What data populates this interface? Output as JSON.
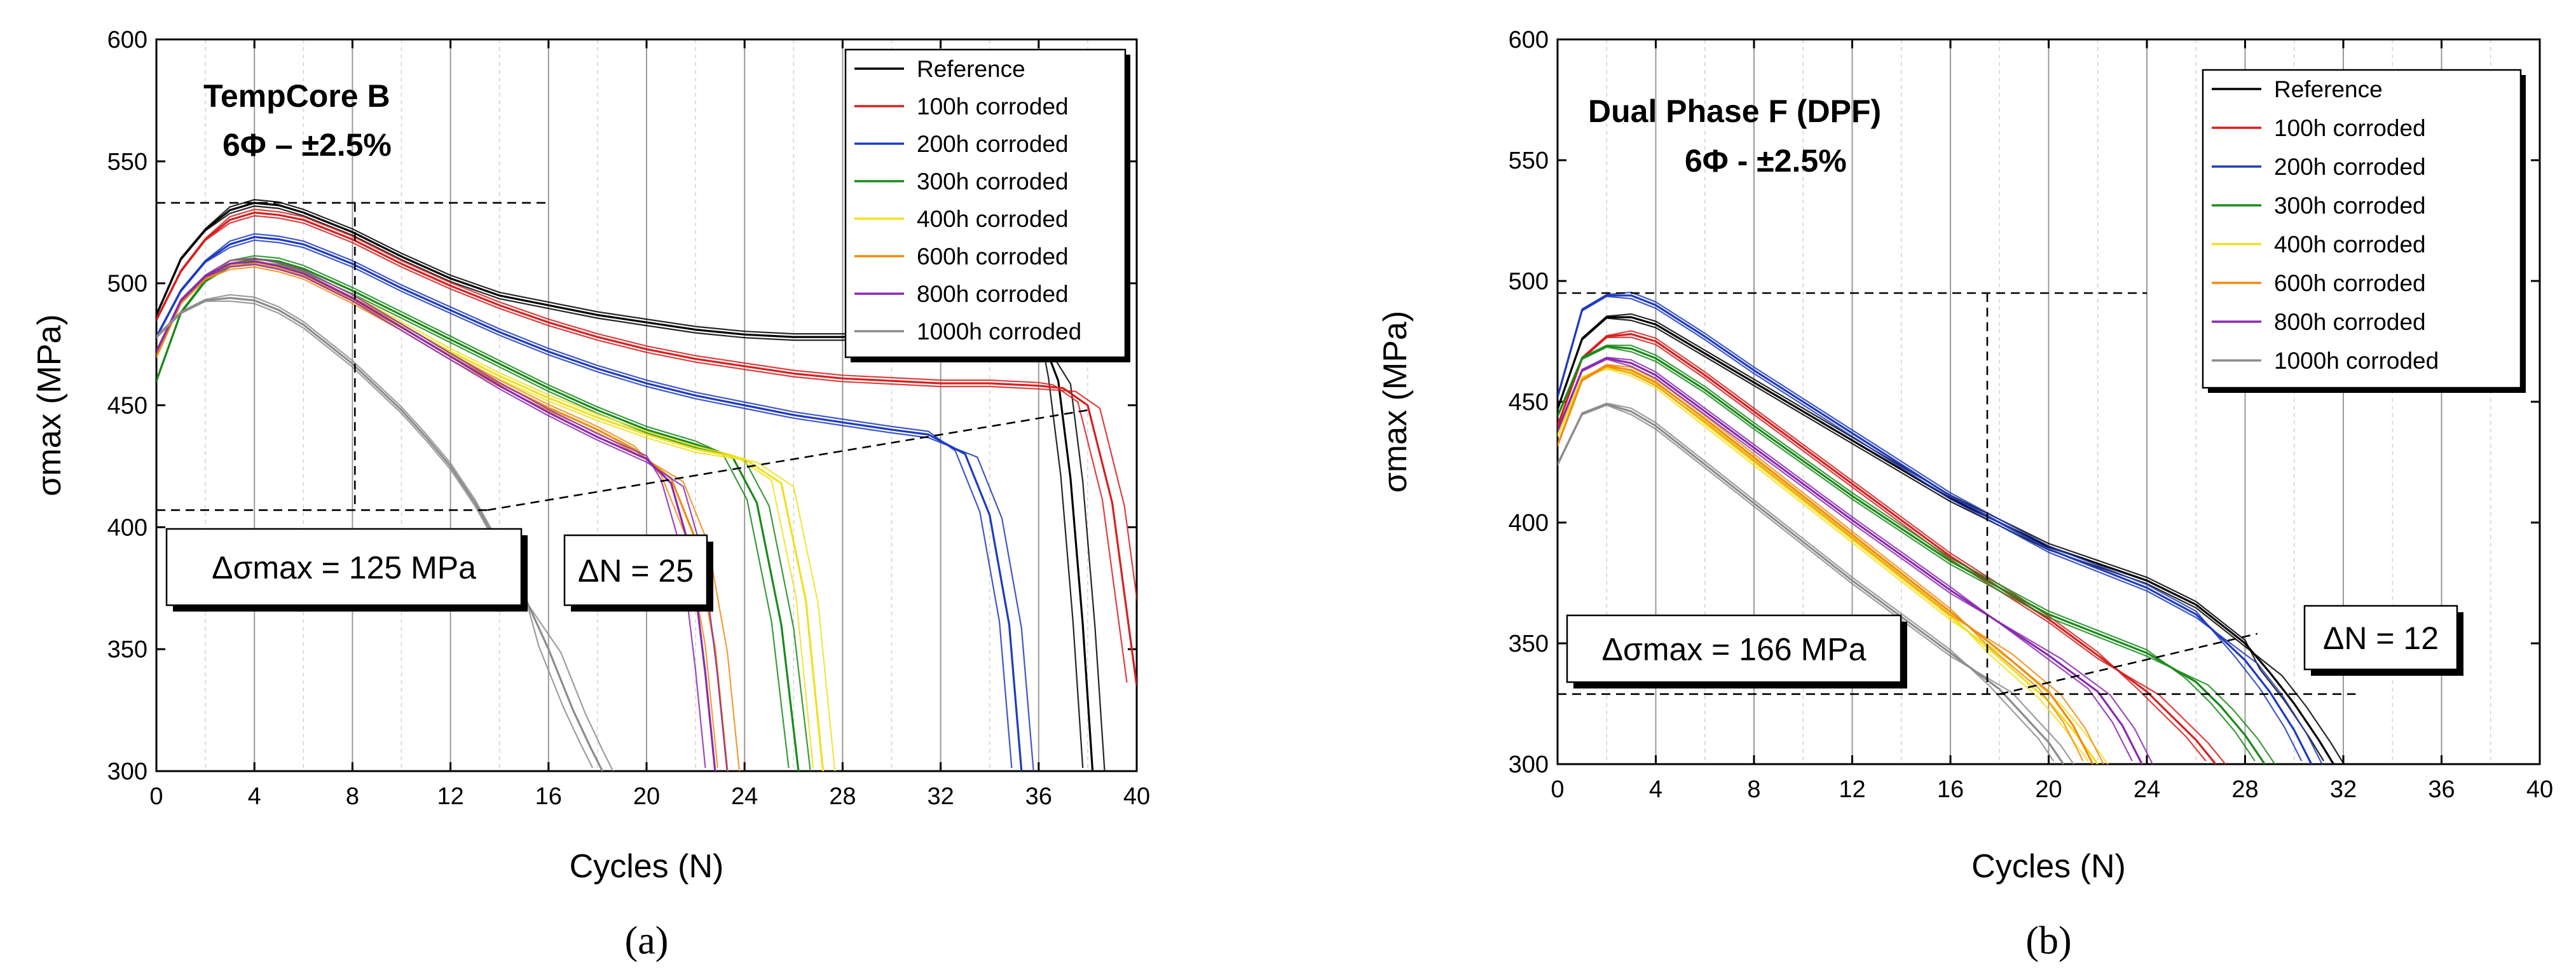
{
  "chart_data": [
    {
      "type": "line",
      "panel_label": "(a)",
      "title": "TempCore B",
      "subtitle": "6Φ – ±2.5%",
      "xlabel": "Cycles (N)",
      "ylabel": "σmax (MPa)",
      "xlim": [
        0,
        40
      ],
      "ylim": [
        300,
        600
      ],
      "xticks": [
        0,
        4,
        8,
        12,
        16,
        20,
        24,
        28,
        32,
        36,
        40
      ],
      "yticks": [
        300,
        350,
        400,
        450,
        500,
        550,
        600
      ],
      "legend_position": "top-right",
      "annotations": {
        "delta_sigma": "Δσmax = 125 MPa",
        "delta_n": "ΔN = 25",
        "ref_peak_level": 533,
        "ref_low_level": 407
      },
      "series": [
        {
          "name": "Reference",
          "color": "#000000",
          "x": [
            0,
            1,
            2,
            3,
            4,
            5,
            6,
            8,
            10,
            12,
            14,
            16,
            18,
            20,
            22,
            24,
            26,
            28,
            30,
            32,
            34,
            35,
            36,
            36.8,
            37.3,
            37.8,
            38.2
          ],
          "y": [
            487,
            510,
            522,
            530,
            533,
            532,
            529,
            521,
            511,
            502,
            495,
            491,
            487,
            484,
            481,
            479,
            478,
            478,
            479,
            480,
            481,
            481,
            481,
            460,
            420,
            360,
            300
          ]
        },
        {
          "name": "100h corroded",
          "color": "#d62020",
          "x": [
            0,
            1,
            2,
            3,
            4,
            5,
            6,
            8,
            10,
            12,
            14,
            16,
            18,
            20,
            22,
            24,
            26,
            28,
            30,
            32,
            34,
            36,
            37,
            38,
            39,
            40
          ],
          "y": [
            485,
            505,
            518,
            526,
            529,
            528,
            526,
            518,
            508,
            499,
            491,
            484,
            478,
            473,
            469,
            466,
            463,
            461,
            460,
            459,
            459,
            458,
            457,
            450,
            410,
            335
          ]
        },
        {
          "name": "200h corroded",
          "color": "#1f3bbf",
          "x": [
            0,
            1,
            2,
            3,
            4,
            5,
            6,
            8,
            10,
            12,
            14,
            16,
            18,
            20,
            22,
            24,
            26,
            28,
            30,
            31.5,
            33,
            34,
            34.8,
            35.3
          ],
          "y": [
            478,
            497,
            509,
            516,
            519,
            518,
            516,
            508,
            498,
            489,
            480,
            472,
            465,
            459,
            454,
            450,
            446,
            443,
            440,
            438,
            430,
            405,
            360,
            300
          ]
        },
        {
          "name": "300h corroded",
          "color": "#1a8a1a",
          "x": [
            0,
            1,
            2,
            3,
            4,
            5,
            6,
            8,
            10,
            12,
            14,
            16,
            18,
            20,
            22,
            23.5,
            24.5,
            25.5,
            26.2
          ],
          "y": [
            460,
            488,
            501,
            508,
            510,
            509,
            506,
            497,
            487,
            477,
            467,
            457,
            448,
            440,
            434,
            429,
            410,
            360,
            300
          ]
        },
        {
          "name": "400h corroded",
          "color": "#f0e020",
          "x": [
            0,
            1,
            2,
            3,
            4,
            5,
            6,
            8,
            10,
            12,
            14,
            16,
            18,
            20,
            22,
            24,
            25.5,
            26.5,
            27.2
          ],
          "y": [
            470,
            493,
            503,
            508,
            509,
            507,
            504,
            494,
            483,
            472,
            462,
            453,
            445,
            438,
            432,
            428,
            418,
            370,
            300
          ]
        },
        {
          "name": "600h corroded",
          "color": "#f08c10",
          "x": [
            0,
            1,
            2,
            3,
            4,
            5,
            6,
            8,
            10,
            12,
            14,
            16,
            18,
            19.5,
            21,
            22,
            22.8,
            23.3
          ],
          "y": [
            470,
            492,
            502,
            507,
            508,
            506,
            503,
            493,
            482,
            470,
            459,
            449,
            440,
            432,
            420,
            395,
            350,
            300
          ]
        },
        {
          "name": "800h corroded",
          "color": "#8a2ab0",
          "x": [
            0,
            1,
            2,
            3,
            4,
            5,
            6,
            8,
            10,
            12,
            14,
            16,
            18,
            20,
            21,
            21.8,
            22.4,
            22.8
          ],
          "y": [
            472,
            493,
            503,
            508,
            509,
            507,
            504,
            494,
            482,
            470,
            458,
            447,
            437,
            428,
            418,
            390,
            340,
            300
          ]
        },
        {
          "name": "1000h corroded",
          "color": "#8c8c8c",
          "x": [
            0,
            1,
            2,
            3,
            4,
            5,
            6,
            8,
            10,
            11,
            12,
            13,
            14,
            15,
            16,
            17,
            17.7,
            18.2
          ],
          "y": [
            478,
            488,
            493,
            494,
            493,
            489,
            483,
            467,
            448,
            437,
            425,
            410,
            392,
            372,
            350,
            325,
            310,
            300
          ]
        }
      ]
    },
    {
      "type": "line",
      "panel_label": "(b)",
      "title": "Dual Phase F (DPF)",
      "subtitle": "6Φ - ±2.5%",
      "xlabel": "Cycles (N)",
      "ylabel": "σmax (MPa)",
      "xlim": [
        0,
        40
      ],
      "ylim": [
        300,
        600
      ],
      "xticks": [
        0,
        4,
        8,
        12,
        16,
        20,
        24,
        28,
        32,
        36,
        40
      ],
      "yticks": [
        300,
        350,
        400,
        450,
        500,
        550,
        600
      ],
      "legend_position": "top-right",
      "annotations": {
        "delta_sigma": "Δσmax = 166 MPa",
        "delta_n": "ΔN = 12",
        "ref_peak_level": 495,
        "ref_low_level": 329
      },
      "series": [
        {
          "name": "Reference",
          "color": "#000000",
          "x": [
            0,
            1,
            2,
            3,
            4,
            6,
            8,
            12,
            16,
            20,
            24,
            26,
            28,
            29,
            30,
            31,
            31.6
          ],
          "y": [
            447,
            476,
            485,
            485,
            482,
            470,
            458,
            434,
            410,
            390,
            376,
            366,
            350,
            338,
            325,
            310,
            300
          ]
        },
        {
          "name": "100h corroded",
          "color": "#d62020",
          "x": [
            0,
            1,
            2,
            3,
            4,
            6,
            8,
            12,
            16,
            20,
            22,
            24,
            25,
            26,
            26.8
          ],
          "y": [
            440,
            468,
            477,
            478,
            475,
            461,
            446,
            416,
            386,
            360,
            345,
            330,
            320,
            310,
            300
          ]
        },
        {
          "name": "200h corroded",
          "color": "#1f3bbf",
          "x": [
            0,
            1,
            2,
            3,
            4,
            6,
            8,
            12,
            16,
            20,
            24,
            26,
            28,
            29,
            30,
            30.7
          ],
          "y": [
            452,
            488,
            494,
            494,
            490,
            477,
            463,
            437,
            411,
            389,
            373,
            362,
            343,
            330,
            314,
            300
          ]
        },
        {
          "name": "300h corroded",
          "color": "#1a8a1a",
          "x": [
            0,
            1,
            2,
            3,
            4,
            6,
            8,
            12,
            16,
            20,
            24,
            26,
            27,
            28,
            28.8
          ],
          "y": [
            444,
            468,
            473,
            472,
            468,
            455,
            440,
            411,
            384,
            362,
            346,
            334,
            324,
            312,
            300
          ]
        },
        {
          "name": "400h corroded",
          "color": "#f0e020",
          "x": [
            0,
            1,
            2,
            3,
            4,
            6,
            8,
            12,
            16,
            18,
            20,
            21,
            22
          ],
          "y": [
            436,
            460,
            464,
            462,
            457,
            441,
            425,
            393,
            361,
            344,
            326,
            314,
            300
          ]
        },
        {
          "name": "600h corroded",
          "color": "#f08c10",
          "x": [
            0,
            1,
            2,
            3,
            4,
            6,
            8,
            12,
            16,
            18,
            20,
            21,
            21.8
          ],
          "y": [
            432,
            459,
            465,
            463,
            458,
            443,
            427,
            395,
            363,
            347,
            330,
            316,
            300
          ]
        },
        {
          "name": "800h corroded",
          "color": "#8a2ab0",
          "x": [
            0,
            1,
            2,
            3,
            4,
            6,
            8,
            12,
            16,
            20,
            22,
            23,
            23.8
          ],
          "y": [
            438,
            463,
            468,
            466,
            461,
            446,
            431,
            401,
            372,
            345,
            330,
            316,
            300
          ]
        },
        {
          "name": "1000h corroded",
          "color": "#8c8c8c",
          "x": [
            0,
            1,
            2,
            3,
            4,
            6,
            8,
            12,
            16,
            18,
            19,
            20,
            20.6
          ],
          "y": [
            424,
            445,
            449,
            446,
            440,
            424,
            408,
            376,
            346,
            331,
            320,
            309,
            300
          ]
        }
      ]
    }
  ]
}
